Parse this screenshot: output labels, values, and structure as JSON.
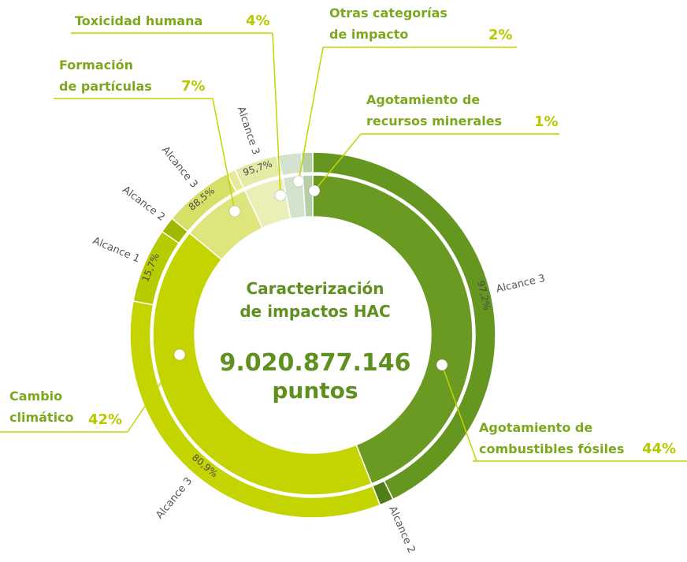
{
  "chart_data": {
    "type": "donut",
    "center_lines": [
      "Caracterización",
      "de impactos HAC"
    ],
    "total": "9.020.877.146",
    "unit": "puntos",
    "segments": [
      {
        "label_lines": [
          "Agotamiento de",
          "combustibles fósiles"
        ],
        "value": 44,
        "value_label": "44%",
        "color": "#6a9a22",
        "scopes": [
          {
            "name": "Alcance 3",
            "value": 97.2,
            "value_label": "97,2%",
            "color": "#659620"
          },
          {
            "name": "Alcance 2",
            "value": 2.8,
            "color": "#4f7d18"
          }
        ]
      },
      {
        "label_lines": [
          "Cambio",
          "climático"
        ],
        "value": 42,
        "value_label": "42%",
        "color": "#c4d400",
        "scopes": [
          {
            "name": "Alcance 3",
            "value": 80.9,
            "value_label": "80,9%",
            "color": "#c4d400"
          },
          {
            "name": "Alcance 1",
            "value": 15.7,
            "value_label": "15,7%",
            "color": "#b6cc00"
          },
          {
            "name": "Alcance 2",
            "value": 3.4,
            "color": "#9fb800"
          }
        ]
      },
      {
        "label_lines": [
          "Formación",
          "de partículas"
        ],
        "value": 7,
        "value_label": "7%",
        "color": "#dde57c",
        "scopes": [
          {
            "name": "Alcance 3",
            "value": 88.5,
            "value_label": "88,5%",
            "color": "#d6df66"
          },
          {
            "name": null,
            "value": 11.5,
            "color": "#e6eb9c"
          }
        ]
      },
      {
        "label_lines": [
          "Toxicidad humana"
        ],
        "value": 4,
        "value_label": "4%",
        "color": "#e9efb6",
        "scopes": [
          {
            "name": "Alcance 3",
            "value": 95.7,
            "value_label": "95,7%",
            "color": "#e4eba6"
          },
          {
            "name": null,
            "value": 4.3,
            "color": "#d3df8c"
          }
        ]
      },
      {
        "label_lines": [
          "Otras categorías",
          "de impacto"
        ],
        "value": 2,
        "value_label": "2%",
        "color": "#d3e2cc",
        "scopes": []
      },
      {
        "label_lines": [
          "Agotamiento de",
          "recursos minerales"
        ],
        "value": 1,
        "value_label": "1%",
        "color": "#b6cfa6",
        "scopes": []
      }
    ]
  }
}
